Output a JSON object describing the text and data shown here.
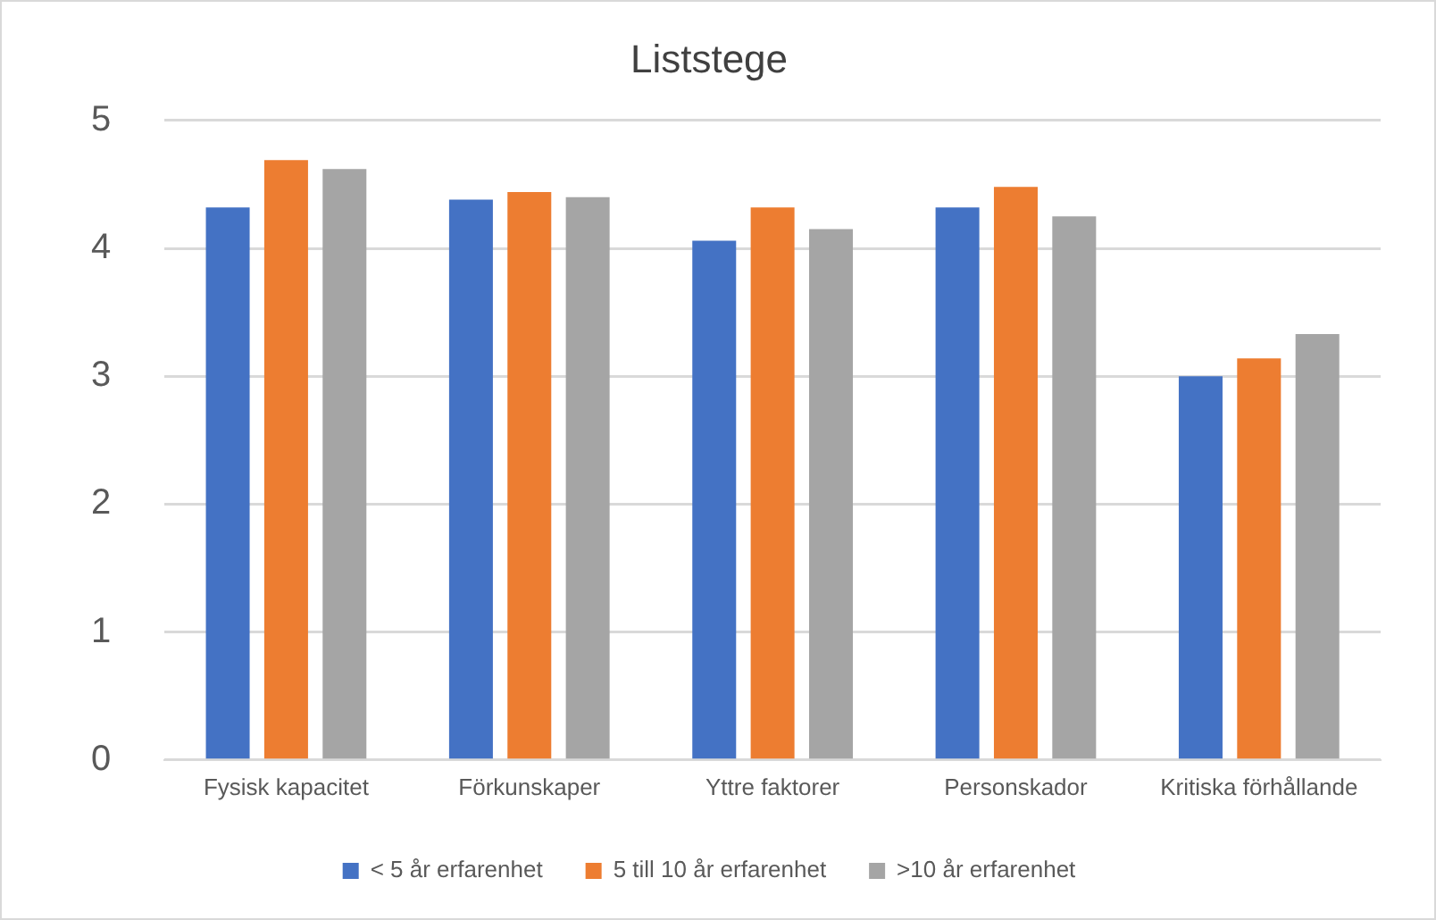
{
  "chart_data": {
    "type": "bar",
    "title": "Liststege",
    "categories": [
      "Fysisk kapacitet",
      "Förkunskaper",
      "Yttre faktorer",
      "Personskador",
      "Kritiska förhållande"
    ],
    "series": [
      {
        "name": "< 5 år erfarenhet",
        "color": "#4472c4",
        "values": [
          4.32,
          4.38,
          4.06,
          4.32,
          3.0
        ]
      },
      {
        "name": "5 till 10 år erfarenhet",
        "color": "#ed7d31",
        "values": [
          4.69,
          4.44,
          4.32,
          4.48,
          3.14
        ]
      },
      {
        "name": ">10 år erfarenhet",
        "color": "#a5a5a5",
        "values": [
          4.62,
          4.4,
          4.15,
          4.25,
          3.33
        ]
      }
    ],
    "ylim": [
      0,
      5
    ],
    "yticks": [
      0,
      1,
      2,
      3,
      4,
      5
    ],
    "grid": "y",
    "legend": "bottom"
  }
}
